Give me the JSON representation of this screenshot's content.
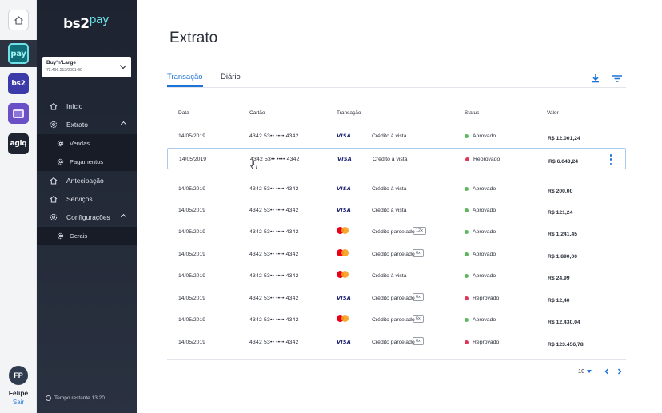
{
  "rail": {
    "items": [
      {
        "name": "home",
        "icon": "home-icon"
      },
      {
        "name": "bs2pay",
        "label": "pay"
      },
      {
        "name": "bs2",
        "label": "bs2"
      },
      {
        "name": "card",
        "icon": "card-icon"
      },
      {
        "name": "agiq",
        "label": "agiq"
      }
    ],
    "user": {
      "initials": "FP",
      "name": "Felipe",
      "logout": "Sair"
    }
  },
  "sidebar": {
    "brand": "bs2",
    "brand_suffix": "pay",
    "company": {
      "name": "Buy'n'Large",
      "id": "72.496.513/0001-90"
    },
    "nav": {
      "inicio": "Início",
      "extrato": "Extrato",
      "vendas": "Vendas",
      "pagamentos": "Pagamentos",
      "antecipacao": "Antecipação",
      "servicos": "Serviços",
      "configuracoes": "Configurações",
      "gerais": "Gerais"
    },
    "session": "Tempo restante 13:20"
  },
  "main": {
    "title": "Extrato",
    "tabs": [
      "Transação",
      "Diário"
    ],
    "active_tab": "Transação",
    "columns": {
      "date": "Data",
      "card": "Cartão",
      "transaction": "Transação",
      "status": "Status",
      "value": "Valor"
    },
    "rows": [
      {
        "date": "14/05/2019",
        "card": "4342 53•• •••• 4342",
        "brand": "visa",
        "brand_label": "VISA",
        "type": "Crédito à vista",
        "installments": "",
        "status": "Aprovado",
        "status_color": "#5cb85c",
        "value": "R$ 12.001,24"
      },
      {
        "date": "14/05/2019",
        "card": "4342 53•• •••• 4342",
        "brand": "visa",
        "brand_label": "VISA",
        "type": "Crédito à vista",
        "installments": "",
        "status": "Reprovado",
        "status_color": "#e0365a",
        "value": "R$ 6.043,24"
      },
      {
        "date": "14/05/2019",
        "card": "4342 53•• •••• 4342",
        "brand": "visa",
        "brand_label": "VISA",
        "type": "Crédito à vista",
        "installments": "",
        "status": "Aprovado",
        "status_color": "#5cb85c",
        "value": "R$ 200,00"
      },
      {
        "date": "14/05/2019",
        "card": "4342 53•• •••• 4342",
        "brand": "visa",
        "brand_label": "VISA",
        "type": "Crédito à vista",
        "installments": "",
        "status": "Aprovado",
        "status_color": "#5cb85c",
        "value": "R$ 121,24"
      },
      {
        "date": "14/05/2019",
        "card": "4342 53•• •••• 4342",
        "brand": "mastercard",
        "brand_label": "",
        "type": "Crédito parcelado",
        "installments": "12x",
        "status": "Aprovado",
        "status_color": "#5cb85c",
        "value": "R$ 1.241,45"
      },
      {
        "date": "14/05/2019",
        "card": "4342 53•• •••• 4342",
        "brand": "mastercard",
        "brand_label": "",
        "type": "Crédito parcelado",
        "installments": "6x",
        "status": "Aprovado",
        "status_color": "#5cb85c",
        "value": "R$ 1.890,00"
      },
      {
        "date": "14/05/2019",
        "card": "4342 53•• •••• 4342",
        "brand": "mastercard",
        "brand_label": "",
        "type": "Crédito à vista",
        "installments": "",
        "status": "Aprovado",
        "status_color": "#5cb85c",
        "value": "R$ 24,99"
      },
      {
        "date": "14/05/2019",
        "card": "4342 53•• •••• 4342",
        "brand": "visa",
        "brand_label": "VISA",
        "type": "Crédito parcelado",
        "installments": "6x",
        "status": "Reprovado",
        "status_color": "#e0365a",
        "value": "R$ 12,40"
      },
      {
        "date": "14/05/2019",
        "card": "4342 53•• •••• 4342",
        "brand": "mastercard",
        "brand_label": "",
        "type": "Crédito parcelado",
        "installments": "6x",
        "status": "Aprovado",
        "status_color": "#5cb85c",
        "value": "R$ 12.430,04"
      },
      {
        "date": "14/05/2019",
        "card": "4342 53•• •••• 4342",
        "brand": "visa",
        "brand_label": "VISA",
        "type": "Crédito parcelado",
        "installments": "6x",
        "status": "Reprovado",
        "status_color": "#e0365a",
        "value": "R$ 123.456,78"
      }
    ],
    "highlighted_row": 1,
    "pagination": {
      "page_size": "10"
    }
  },
  "colors": {
    "accent": "#1d73d8",
    "sidebar": "#1d2330",
    "approved": "#5cb85c",
    "rejected": "#e0365a"
  }
}
